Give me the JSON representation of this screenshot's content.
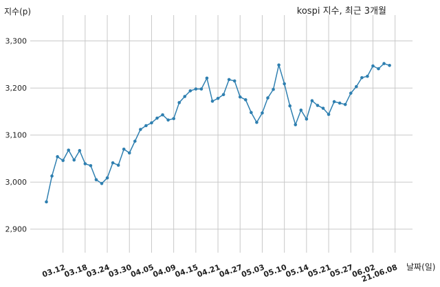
{
  "chart_data": {
    "type": "line",
    "title": "kospi 지수, 최근 3개월",
    "ylabel": "지수(p)",
    "xlabel": "날짜(일)",
    "ylim": [
      2850,
      3355
    ],
    "yticks": [
      2900,
      3000,
      3100,
      3200,
      3300
    ],
    "ytick_labels": [
      "2,900",
      "3,000",
      "3,100",
      "3,200",
      "3,300"
    ],
    "xtick_labels": [
      "03.12",
      "03.18",
      "03.24",
      "03.30",
      "04.05",
      "04.09",
      "04.15",
      "04.21",
      "04.27",
      "05.03",
      "05.10",
      "05.14",
      "05.21",
      "05.27",
      "06.02",
      "21.06.08"
    ],
    "xtick_index": [
      3,
      7,
      11,
      15,
      19,
      23,
      27,
      31,
      35,
      39,
      43,
      47,
      51,
      55,
      59,
      63
    ],
    "grid": true,
    "series": [
      {
        "color": "#2e7fb0",
        "values": [
          2958,
          3013,
          3054,
          3046,
          3068,
          3047,
          3067,
          3039,
          3035,
          3005,
          2997,
          3009,
          3041,
          3036,
          3070,
          3062,
          3087,
          3112,
          3120,
          3126,
          3136,
          3143,
          3132,
          3135,
          3169,
          3182,
          3194,
          3198,
          3198,
          3221,
          3172,
          3178,
          3186,
          3218,
          3215,
          3181,
          3175,
          3148,
          3127,
          3147,
          3179,
          3197,
          3249,
          3209,
          3162,
          3122,
          3153,
          3134,
          3173,
          3163,
          3157,
          3144,
          3171,
          3168,
          3165,
          3189,
          3203,
          3222,
          3225,
          3247,
          3241,
          3252,
          3248
        ]
      }
    ]
  }
}
